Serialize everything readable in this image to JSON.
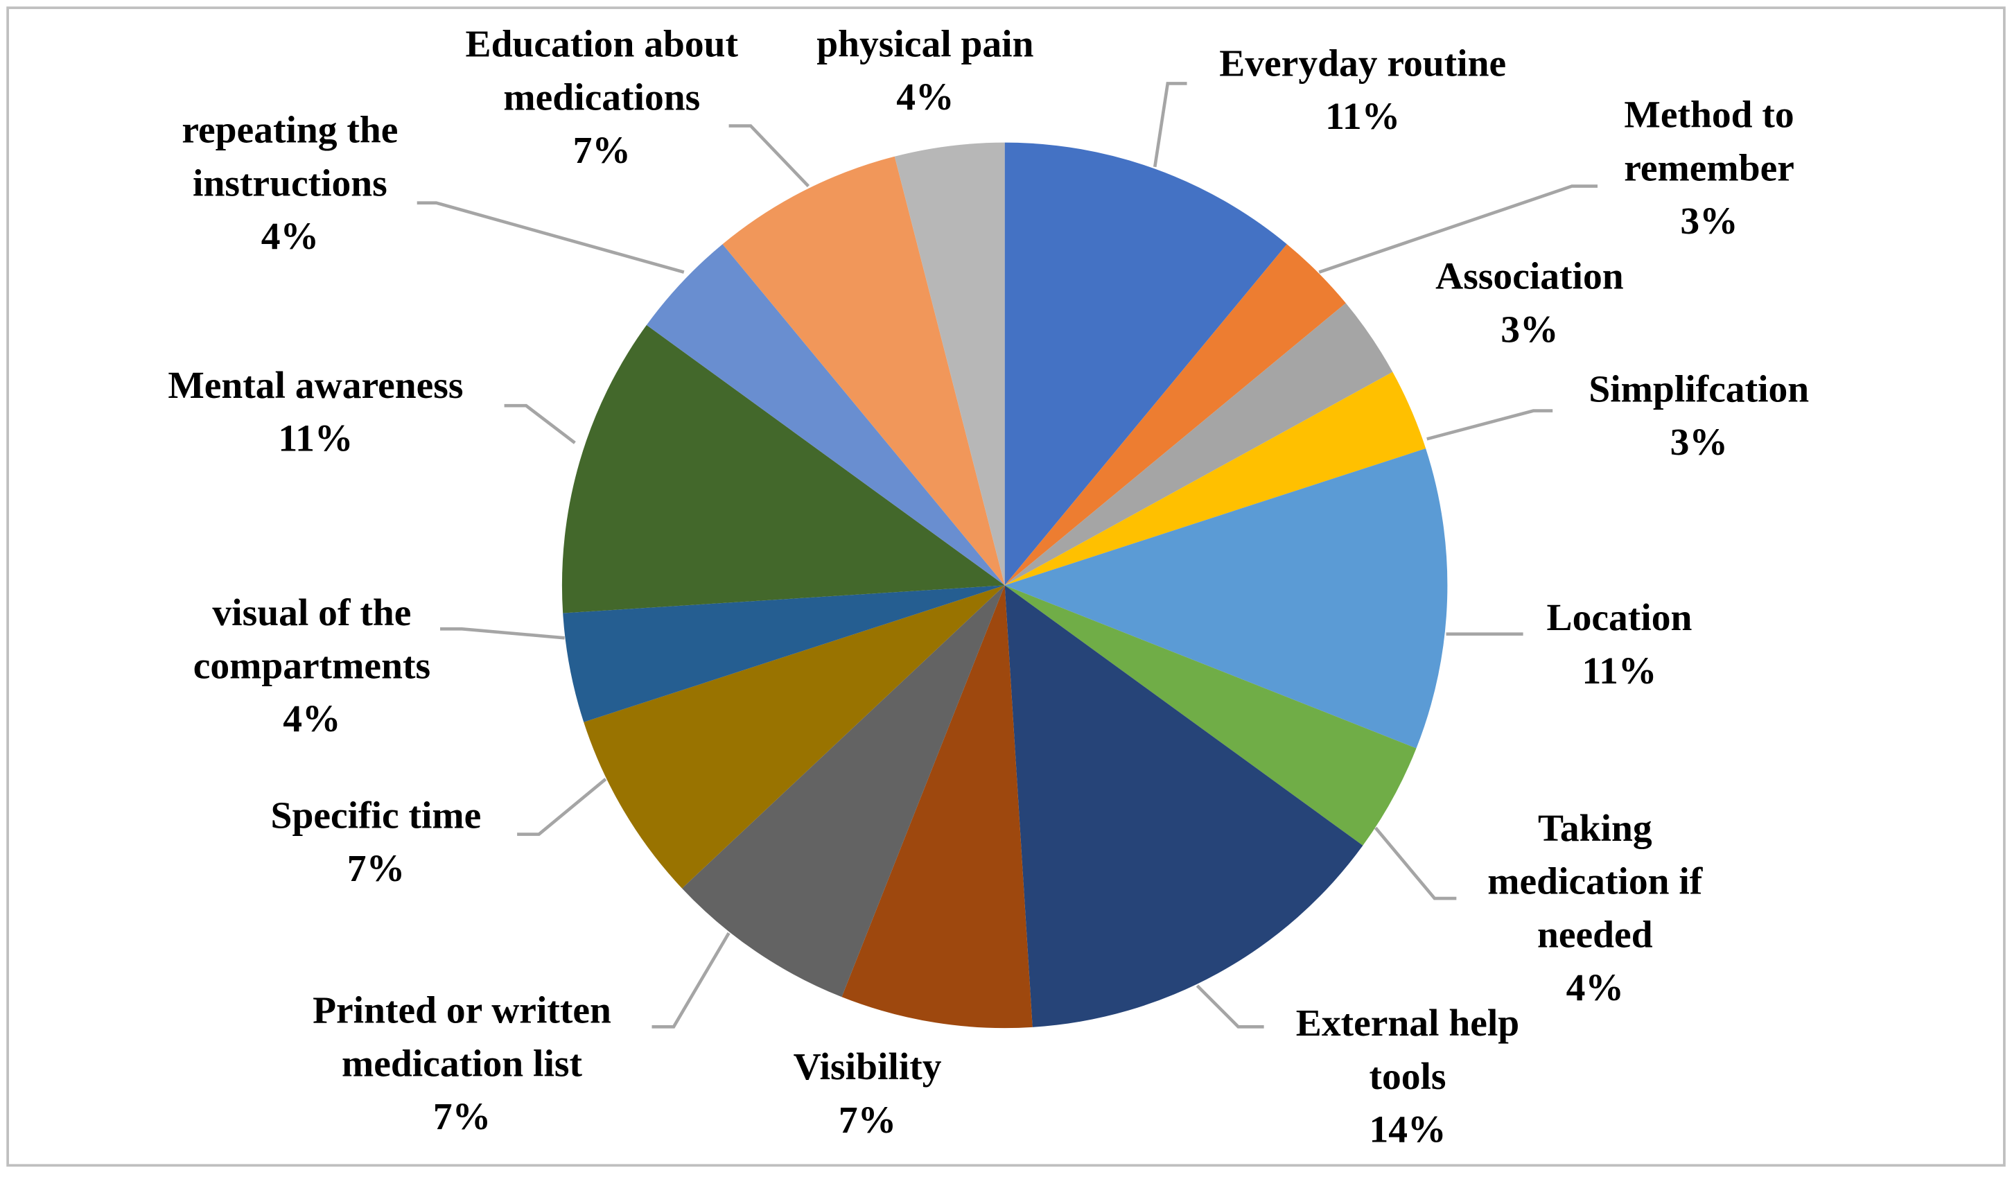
{
  "chart_data": {
    "type": "pie",
    "categories": [
      "Everyday routine",
      "Method to\nremember",
      "Association",
      "Simplifcation",
      "Location",
      "Taking\nmedication if\nneeded",
      "External help\ntools",
      "Visibility",
      "Printed or written\nmedication list",
      "Specific time",
      "visual of the\ncompartments",
      "Mental awareness",
      "repeating the\ninstructions",
      "Education about\nmedications",
      "physical pain"
    ],
    "values": [
      11,
      3,
      3,
      3,
      11,
      4,
      14,
      7,
      7,
      7,
      4,
      11,
      4,
      7,
      4
    ],
    "value_labels": [
      "11%",
      "3%",
      "3%",
      "3%",
      "11%",
      "4%",
      "14%",
      "7%",
      "7%",
      "7%",
      "4%",
      "11%",
      "4%",
      "7%",
      "4%"
    ],
    "colors": [
      "#4472c4",
      "#ed7d31",
      "#a5a5a5",
      "#ffc000",
      "#5b9bd5",
      "#70ad47",
      "#264478",
      "#9e480e",
      "#636363",
      "#997300",
      "#255e91",
      "#43682b",
      "#698ed0",
      "#f1975a",
      "#b7b7b7"
    ]
  }
}
